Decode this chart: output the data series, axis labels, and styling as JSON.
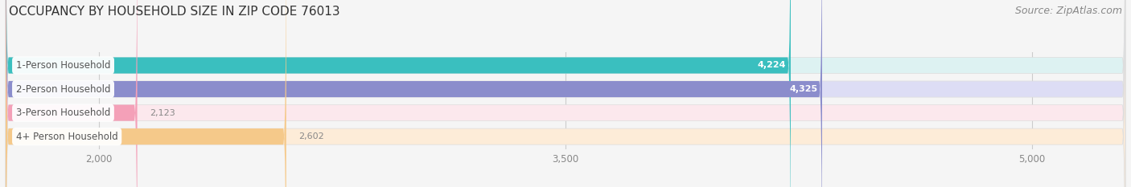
{
  "title": "OCCUPANCY BY HOUSEHOLD SIZE IN ZIP CODE 76013",
  "source": "Source: ZipAtlas.com",
  "categories": [
    "1-Person Household",
    "2-Person Household",
    "3-Person Household",
    "4+ Person Household"
  ],
  "values": [
    4224,
    4325,
    2123,
    2602
  ],
  "bar_colors": [
    "#3abfbf",
    "#8b8dcc",
    "#f4a0b8",
    "#f5c98a"
  ],
  "bar_bg_colors": [
    "#ddf2f2",
    "#ddddf5",
    "#fce8ed",
    "#fdecd8"
  ],
  "xlim": [
    1700,
    5300
  ],
  "xticks": [
    2000,
    3500,
    5000
  ],
  "xtick_labels": [
    "2,000",
    "3,500",
    "5,000"
  ],
  "title_fontsize": 11,
  "source_fontsize": 9,
  "bar_height": 0.68,
  "background_color": "#f5f5f5",
  "grid_color": "#cccccc",
  "label_text_color": "#555555",
  "value_color_inside": "#ffffff",
  "value_color_outside": "#888888"
}
